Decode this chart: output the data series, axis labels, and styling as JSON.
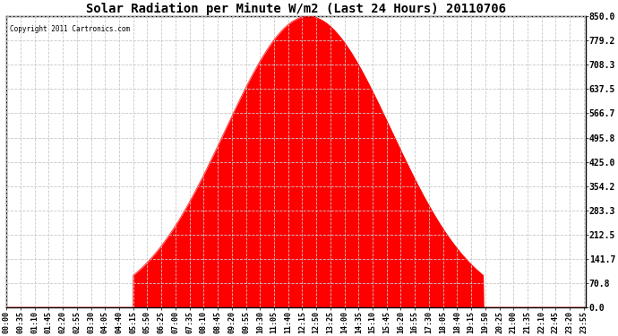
{
  "title": "Solar Radiation per Minute W/m2 (Last 24 Hours) 20110706",
  "copyright": "Copyright 2011 Cartronics.com",
  "fill_color": "#ff0000",
  "line_color": "#ff0000",
  "dashed_line_color": "#ff0000",
  "background_color": "#ffffff",
  "grid_color": "#c8c8c8",
  "ylim": [
    0.0,
    850.0
  ],
  "yticks": [
    0.0,
    70.8,
    141.7,
    212.5,
    283.3,
    354.2,
    425.0,
    495.8,
    566.7,
    637.5,
    708.3,
    779.2,
    850.0
  ],
  "tick_interval_minutes": 35,
  "total_minutes": 1440,
  "sunrise_minute": 315,
  "sunset_minute": 1185,
  "peak_minute": 750,
  "peak_value": 850.0,
  "sigma_factor": 4.2
}
